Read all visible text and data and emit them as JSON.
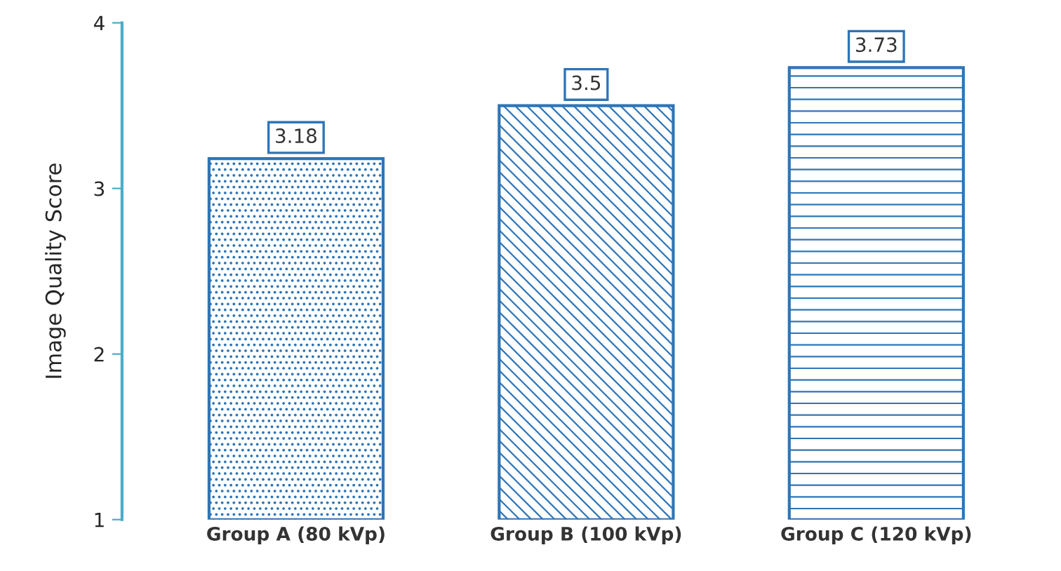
{
  "chart_data": {
    "type": "bar",
    "ylabel": "Image Quality Score",
    "categories": [
      "Group A (80 kVp)",
      "Group B (100 kVp)",
      "Group C (120 kVp)"
    ],
    "values": [
      3.18,
      3.5,
      3.73
    ],
    "color": "#2e75b6",
    "ylim": [
      1,
      4
    ],
    "yticks": [
      1,
      2,
      3,
      4
    ],
    "grid": false,
    "data_labels": true
  }
}
